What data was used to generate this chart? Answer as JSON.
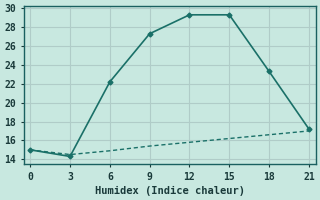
{
  "xlabel": "Humidex (Indice chaleur)",
  "background_color": "#c8e8e0",
  "grid_color": "#b0ccc8",
  "line_color": "#1a7068",
  "spine_color": "#1a6060",
  "xlim": [
    -0.5,
    21.5
  ],
  "ylim": [
    13.5,
    30.2
  ],
  "xticks": [
    0,
    3,
    6,
    9,
    12,
    15,
    18,
    21
  ],
  "yticks": [
    14,
    16,
    18,
    20,
    22,
    24,
    26,
    28,
    30
  ],
  "line1_x": [
    0,
    3,
    6,
    9,
    12,
    15,
    18,
    21
  ],
  "line1_y": [
    15.0,
    14.3,
    22.2,
    27.3,
    29.3,
    29.3,
    23.3,
    17.2
  ],
  "line2_x": [
    0,
    3,
    6,
    9,
    12,
    15,
    18,
    21
  ],
  "line2_y": [
    15.0,
    14.5,
    14.9,
    15.4,
    15.8,
    16.2,
    16.6,
    17.0
  ]
}
